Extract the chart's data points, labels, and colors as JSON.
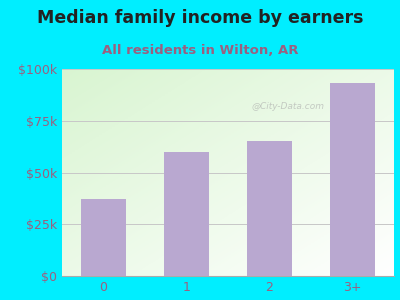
{
  "title": "Median family income by earners",
  "subtitle": "All residents in Wilton, AR",
  "categories": [
    "0",
    "1",
    "2",
    "3+"
  ],
  "values": [
    37000,
    60000,
    65000,
    93000
  ],
  "bar_color": "#b9a8d0",
  "ylim": [
    0,
    100000
  ],
  "yticks": [
    0,
    25000,
    50000,
    75000,
    100000
  ],
  "ytick_labels": [
    "$0",
    "$25k",
    "$50k",
    "$75k",
    "$100k"
  ],
  "background_outer": "#00eeff",
  "title_color": "#222222",
  "subtitle_color": "#9b6080",
  "tick_color": "#9b6080",
  "title_fontsize": 12.5,
  "subtitle_fontsize": 9.5,
  "watermark": "@City-Data.com"
}
